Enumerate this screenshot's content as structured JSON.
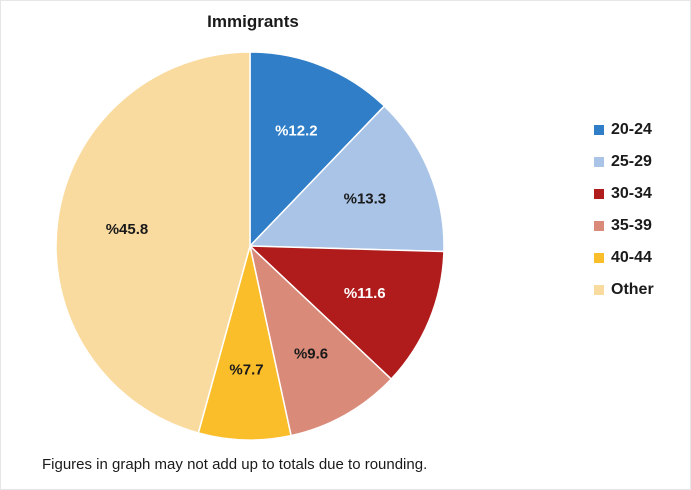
{
  "chart_data": {
    "type": "pie",
    "title": "Immigrants",
    "categories": [
      "20-24",
      "25-29",
      "30-34",
      "35-39",
      "40-44",
      "Other"
    ],
    "values": [
      12.2,
      13.3,
      11.6,
      9.6,
      7.7,
      45.8
    ],
    "data_labels": [
      "%12.2",
      "%13.3",
      "%11.6",
      "%9.6",
      "%7.7",
      "%45.8"
    ],
    "colors": [
      "#2F7EC7",
      "#A9C4E6",
      "#B01C1C",
      "#D98A78",
      "#FBBE2B",
      "#FADB9F"
    ],
    "label_colors": [
      "#ffffff",
      "#1a1a1a",
      "#ffffff",
      "#1a1a1a",
      "#1a1a1a",
      "#1a1a1a"
    ],
    "legend_placement": "right",
    "start_angle_deg": 0,
    "direction": "clockwise"
  },
  "footnote": "Figures in graph may not add up to totals due to rounding."
}
